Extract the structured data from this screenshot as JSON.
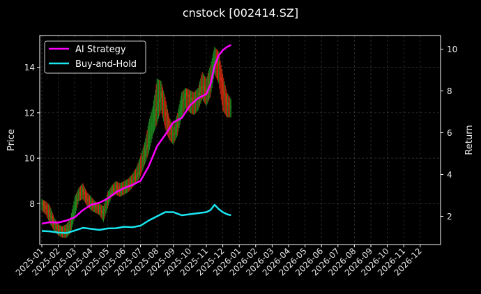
{
  "chart_data": {
    "type": "line",
    "title": "cnstock [002414.SZ]",
    "xlabel": "",
    "ylabel": "Price",
    "y2label": "Return",
    "x_tick_labels": [
      "2025-01",
      "2025-02",
      "2025-03",
      "2025-04",
      "2025-05",
      "2025-06",
      "2025-07",
      "2025-08",
      "2025-09",
      "2025-10",
      "2025-11",
      "2025-12",
      "2026-01",
      "2026-02",
      "2026-03",
      "2026-04",
      "2026-05",
      "2026-06",
      "2026-07",
      "2026-08",
      "2026-09",
      "2026-10",
      "2026-11",
      "2026-12"
    ],
    "y_ticks": [
      8,
      10,
      12,
      14
    ],
    "ylim": [
      6.2,
      15.4
    ],
    "y2_ticks": [
      2,
      4,
      6,
      8,
      10
    ],
    "y2lim": [
      0.65,
      10.65
    ],
    "xlim_months": [
      0,
      24.0
    ],
    "grid": true,
    "legend_position": "top-left",
    "colors": {
      "background": "#000000",
      "up": "#1f8c1f",
      "down": "#d42a0f",
      "ai": "#ff00ff",
      "bh": "#19e6f0",
      "grid": "#444444"
    },
    "price_series": {
      "x_months": [
        0.0,
        0.25,
        0.5,
        0.75,
        1.0,
        1.25,
        1.5,
        1.75,
        2.0,
        2.25,
        2.5,
        2.75,
        3.0,
        3.25,
        3.5,
        3.75,
        4.0,
        4.25,
        4.5,
        4.75,
        5.0,
        5.25,
        5.5,
        5.75,
        6.0,
        6.25,
        6.5,
        6.75,
        7.0,
        7.25,
        7.5,
        7.75,
        8.0,
        8.25,
        8.5,
        8.75,
        9.0,
        9.25,
        9.5,
        9.75,
        10.0,
        10.25,
        10.5,
        10.75,
        11.0,
        11.25,
        11.5
      ],
      "close": [
        8.0,
        7.8,
        7.5,
        7.1,
        6.9,
        6.8,
        6.8,
        7.0,
        7.9,
        8.4,
        8.6,
        8.2,
        8.0,
        7.9,
        7.8,
        7.6,
        8.2,
        8.6,
        8.7,
        8.6,
        8.7,
        8.8,
        9.0,
        9.2,
        9.6,
        10.2,
        10.8,
        11.6,
        12.3,
        12.8,
        12.1,
        11.4,
        11.0,
        11.5,
        12.4,
        12.9,
        12.6,
        12.5,
        12.8,
        13.2,
        12.9,
        13.3,
        14.5,
        14.1,
        13.0,
        12.4,
        12.2
      ],
      "high": [
        8.2,
        8.1,
        7.9,
        7.4,
        7.1,
        7.0,
        7.1,
        7.4,
        8.3,
        8.7,
        8.9,
        8.5,
        8.3,
        8.1,
        8.0,
        7.9,
        8.5,
        8.8,
        9.0,
        8.9,
        9.0,
        9.1,
        9.3,
        9.6,
        10.1,
        10.7,
        11.6,
        12.3,
        13.5,
        13.4,
        12.7,
        11.8,
        11.4,
        12.0,
        12.9,
        13.1,
        13.0,
        12.9,
        13.1,
        13.8,
        13.5,
        14.1,
        14.9,
        14.7,
        13.7,
        12.9,
        12.6
      ],
      "low": [
        7.7,
        7.5,
        7.1,
        6.8,
        6.6,
        6.5,
        6.5,
        6.7,
        7.4,
        8.1,
        8.2,
        7.9,
        7.7,
        7.6,
        7.5,
        7.2,
        7.8,
        8.3,
        8.4,
        8.3,
        8.4,
        8.5,
        8.7,
        8.9,
        9.2,
        9.7,
        10.2,
        11.0,
        11.5,
        12.1,
        11.3,
        10.8,
        10.6,
        11.0,
        11.8,
        12.2,
        12.0,
        11.9,
        12.1,
        12.6,
        12.3,
        12.7,
        13.7,
        13.3,
        12.1,
        11.8,
        11.8
      ]
    },
    "series": [
      {
        "name": "AI Strategy",
        "x_months": [
          0.0,
          0.5,
          1.0,
          1.5,
          2.0,
          2.5,
          3.0,
          3.5,
          4.0,
          4.5,
          5.0,
          5.5,
          6.0,
          6.5,
          7.0,
          7.5,
          8.0,
          8.5,
          9.0,
          9.5,
          10.0,
          10.25,
          10.5,
          10.75,
          11.0,
          11.25,
          11.5
        ],
        "values": [
          1.65,
          1.72,
          1.7,
          1.8,
          1.95,
          2.3,
          2.55,
          2.65,
          2.85,
          3.15,
          3.35,
          3.5,
          3.7,
          4.4,
          5.35,
          5.9,
          6.5,
          6.7,
          7.3,
          7.65,
          7.85,
          8.3,
          9.2,
          9.7,
          9.95,
          10.1,
          10.2
        ]
      },
      {
        "name": "Buy-and-Hold",
        "x_months": [
          0.0,
          0.5,
          1.0,
          1.5,
          2.0,
          2.5,
          3.0,
          3.5,
          4.0,
          4.5,
          5.0,
          5.5,
          6.0,
          6.5,
          7.0,
          7.5,
          8.0,
          8.5,
          9.0,
          9.5,
          10.0,
          10.25,
          10.5,
          10.75,
          11.0,
          11.25,
          11.5
        ],
        "values": [
          1.3,
          1.28,
          1.22,
          1.2,
          1.32,
          1.45,
          1.4,
          1.35,
          1.42,
          1.43,
          1.5,
          1.48,
          1.55,
          1.8,
          2.0,
          2.2,
          2.2,
          2.05,
          2.1,
          2.15,
          2.2,
          2.3,
          2.55,
          2.35,
          2.2,
          2.1,
          2.05
        ]
      }
    ]
  }
}
